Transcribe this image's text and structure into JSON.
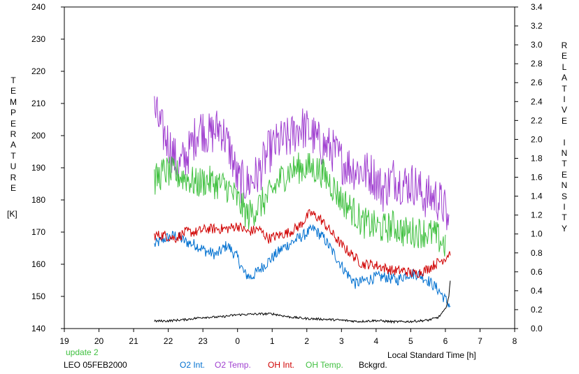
{
  "chart_data": {
    "type": "line",
    "y_left_label_letters": [
      "T",
      "E",
      "M",
      "P",
      "E",
      "R",
      "A",
      "T",
      "U",
      "R",
      "E"
    ],
    "y_left_unit": "[K]",
    "y_right_label_letters": [
      "R",
      "E",
      "L",
      "A",
      "T",
      "I",
      "V",
      "E",
      " ",
      "I",
      "N",
      "T",
      "E",
      "N",
      "S",
      "I",
      "T",
      "Y"
    ],
    "xlabel": "Local Standard Time [h]",
    "x_tick_labels": [
      "19",
      "20",
      "21",
      "22",
      "23",
      "0",
      "1",
      "2",
      "3",
      "4",
      "5",
      "6",
      "7",
      "8"
    ],
    "x_ticks": [
      19,
      20,
      21,
      22,
      23,
      24,
      25,
      26,
      27,
      28,
      29,
      30,
      31,
      32
    ],
    "xlim": [
      19,
      32
    ],
    "ylim_left": [
      140,
      240
    ],
    "y_left_ticks": [
      140,
      150,
      160,
      170,
      180,
      190,
      200,
      210,
      220,
      230,
      240
    ],
    "ylim_right": [
      0.0,
      3.4
    ],
    "y_right_ticks": [
      "0.0",
      "0.2",
      "0.4",
      "0.6",
      "0.8",
      "1.0",
      "1.2",
      "1.4",
      "1.6",
      "1.8",
      "2.0",
      "2.2",
      "2.4",
      "2.6",
      "2.8",
      "3.0",
      "3.2",
      "3.4"
    ],
    "annotation_update": "update 2",
    "annotation_station": "LEO 05FEB2000",
    "legend_placement": "bottom",
    "series": [
      {
        "name": "O2 Int.",
        "axis": "left",
        "color": "#0070d0",
        "noise": 1.8,
        "x": [
          21.6,
          21.9,
          22.2,
          22.5,
          22.8,
          23.1,
          23.4,
          23.7,
          24.0,
          24.2,
          24.4,
          24.7,
          25.0,
          25.3,
          25.6,
          25.9,
          26.2,
          26.5,
          26.8,
          27.1,
          27.4,
          27.7,
          28.0,
          28.3,
          28.6,
          28.9,
          29.2,
          29.5,
          29.8,
          30.0,
          30.15
        ],
        "y": [
          166,
          168,
          169,
          167,
          166,
          164,
          163,
          166,
          162,
          157,
          156,
          159,
          162,
          165,
          167,
          169,
          171,
          168,
          163,
          158,
          154,
          155,
          156,
          156,
          155,
          157,
          157,
          155,
          152,
          149,
          147
        ]
      },
      {
        "name": "O2 Temp.",
        "axis": "left",
        "color": "#a040d0",
        "noise": 7,
        "x": [
          21.6,
          21.8,
          22.0,
          22.3,
          22.6,
          22.9,
          23.2,
          23.5,
          23.8,
          24.0,
          24.3,
          24.6,
          24.9,
          25.2,
          25.5,
          25.8,
          26.1,
          26.4,
          26.7,
          27.0,
          27.3,
          27.6,
          27.9,
          28.2,
          28.5,
          28.8,
          29.1,
          29.4,
          29.7,
          29.95,
          30.1
        ],
        "y": [
          208,
          202,
          198,
          190,
          195,
          203,
          200,
          203,
          195,
          186,
          185,
          188,
          195,
          198,
          199,
          203,
          201,
          197,
          196,
          192,
          190,
          189,
          188,
          183,
          187,
          185,
          185,
          181,
          181,
          178,
          172
        ]
      },
      {
        "name": "OH Int.",
        "axis": "left",
        "color": "#d00000",
        "noise": 1.6,
        "x": [
          21.6,
          21.9,
          22.2,
          22.5,
          22.8,
          23.1,
          23.4,
          23.7,
          24.0,
          24.3,
          24.6,
          24.9,
          25.2,
          25.5,
          25.8,
          26.1,
          26.4,
          26.7,
          27.0,
          27.3,
          27.6,
          27.9,
          28.2,
          28.5,
          28.8,
          29.1,
          29.4,
          29.7,
          30.0,
          30.15
        ],
        "y": [
          169,
          169,
          168,
          170,
          170,
          171,
          171,
          171,
          172,
          170,
          171,
          168,
          169,
          170,
          172,
          176,
          174,
          170,
          166,
          163,
          160,
          160,
          159,
          158,
          158,
          157,
          158,
          160,
          162,
          164
        ]
      },
      {
        "name": "OH Temp.",
        "axis": "left",
        "color": "#40c040",
        "noise": 5,
        "x": [
          21.6,
          21.9,
          22.2,
          22.5,
          22.8,
          23.1,
          23.4,
          23.7,
          24.0,
          24.3,
          24.6,
          24.9,
          25.2,
          25.5,
          25.8,
          26.1,
          26.4,
          26.7,
          27.0,
          27.3,
          27.6,
          27.9,
          28.2,
          28.5,
          28.8,
          29.1,
          29.4,
          29.7,
          30.0
        ],
        "y": [
          186,
          189,
          188,
          187,
          185,
          186,
          185,
          184,
          180,
          175,
          178,
          181,
          186,
          189,
          190,
          190,
          189,
          185,
          180,
          177,
          173,
          172,
          171,
          172,
          170,
          170,
          170,
          169,
          166
        ]
      },
      {
        "name": "Bckgrd.",
        "axis": "left",
        "color": "#000000",
        "noise": 0.35,
        "x": [
          21.6,
          22.0,
          22.5,
          23.0,
          23.5,
          24.0,
          24.5,
          25.0,
          25.5,
          26.0,
          26.5,
          27.0,
          27.5,
          28.0,
          28.5,
          29.0,
          29.5,
          29.8,
          30.0,
          30.1,
          30.15
        ],
        "y": [
          142.3,
          142.4,
          142.8,
          143.5,
          143.6,
          144.3,
          144.5,
          144.6,
          143.6,
          143.1,
          142.9,
          142.6,
          142.2,
          142.5,
          142.1,
          142.2,
          142.6,
          143.5,
          146,
          150,
          156
        ]
      }
    ]
  }
}
